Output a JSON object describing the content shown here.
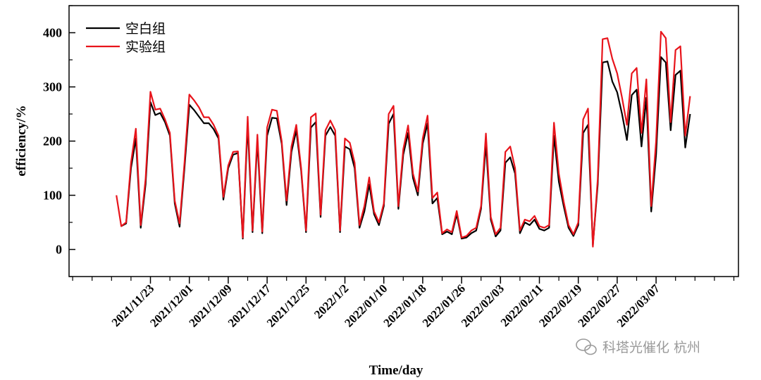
{
  "chart_data": {
    "type": "line",
    "xlabel": "Time/day",
    "ylabel": "efficiency/%",
    "ylim": [
      -50,
      450
    ],
    "yticks": [
      0,
      100,
      200,
      300,
      400
    ],
    "x_tick_labels": [
      "2021/11/23",
      "2021/12/01",
      "2021/12/09",
      "2021/12/17",
      "2021/12/25",
      "2022/1/2",
      "2022/01/10",
      "2022/01/18",
      "2022/01/26",
      "2022/02/03",
      "2022/02/11",
      "2022/02/19",
      "2022/02/27",
      "2022/03/07"
    ],
    "legend_position": "top-left",
    "grid": false,
    "series": [
      {
        "name": "空白组",
        "color": "#000000",
        "values": [
          [
            -7,
            null
          ],
          [
            -6,
            43
          ],
          [
            -5,
            48
          ],
          [
            -4,
            150
          ],
          [
            -3,
            205
          ],
          [
            -2,
            40
          ],
          [
            -1,
            120
          ],
          [
            0,
            272
          ],
          [
            1,
            248
          ],
          [
            2,
            252
          ],
          [
            3,
            235
          ],
          [
            4,
            210
          ],
          [
            5,
            85
          ],
          [
            6,
            42
          ],
          [
            7,
            150
          ],
          [
            8,
            267
          ],
          [
            9,
            257
          ],
          [
            10,
            245
          ],
          [
            11,
            233
          ],
          [
            12,
            233
          ],
          [
            13,
            222
          ],
          [
            14,
            205
          ],
          [
            15,
            92
          ],
          [
            16,
            150
          ],
          [
            17,
            175
          ],
          [
            18,
            178
          ],
          [
            19,
            20
          ],
          [
            20,
            230
          ],
          [
            21,
            32
          ],
          [
            22,
            200
          ],
          [
            23,
            30
          ],
          [
            24,
            210
          ],
          [
            25,
            243
          ],
          [
            26,
            242
          ],
          [
            27,
            195
          ],
          [
            28,
            82
          ],
          [
            29,
            180
          ],
          [
            30,
            220
          ],
          [
            31,
            145
          ],
          [
            32,
            32
          ],
          [
            33,
            225
          ],
          [
            34,
            235
          ],
          [
            35,
            60
          ],
          [
            36,
            210
          ],
          [
            37,
            226
          ],
          [
            38,
            210
          ],
          [
            39,
            32
          ],
          [
            40,
            190
          ],
          [
            41,
            185
          ],
          [
            42,
            150
          ],
          [
            43,
            40
          ],
          [
            44,
            70
          ],
          [
            45,
            120
          ],
          [
            46,
            65
          ],
          [
            47,
            45
          ],
          [
            48,
            80
          ],
          [
            49,
            232
          ],
          [
            50,
            250
          ],
          [
            51,
            75
          ],
          [
            52,
            175
          ],
          [
            53,
            215
          ],
          [
            54,
            132
          ],
          [
            55,
            100
          ],
          [
            56,
            195
          ],
          [
            57,
            233
          ],
          [
            58,
            85
          ],
          [
            59,
            95
          ],
          [
            60,
            28
          ],
          [
            61,
            33
          ],
          [
            62,
            28
          ],
          [
            63,
            65
          ],
          [
            64,
            20
          ],
          [
            65,
            22
          ],
          [
            66,
            30
          ],
          [
            67,
            35
          ],
          [
            68,
            75
          ],
          [
            69,
            195
          ],
          [
            70,
            55
          ],
          [
            71,
            24
          ],
          [
            72,
            35
          ],
          [
            73,
            160
          ],
          [
            74,
            170
          ],
          [
            75,
            140
          ],
          [
            76,
            30
          ],
          [
            77,
            50
          ],
          [
            78,
            45
          ],
          [
            79,
            55
          ],
          [
            80,
            38
          ],
          [
            81,
            35
          ],
          [
            82,
            40
          ],
          [
            83,
            210
          ],
          [
            84,
            125
          ],
          [
            85,
            80
          ],
          [
            86,
            40
          ],
          [
            87,
            25
          ],
          [
            88,
            45
          ],
          [
            89,
            215
          ],
          [
            90,
            230
          ],
          [
            91,
            8
          ],
          [
            92,
            120
          ],
          [
            93,
            345
          ],
          [
            94,
            347
          ],
          [
            95,
            310
          ],
          [
            96,
            290
          ],
          [
            97,
            250
          ],
          [
            98,
            202
          ],
          [
            99,
            285
          ],
          [
            100,
            295
          ],
          [
            101,
            190
          ],
          [
            102,
            280
          ],
          [
            103,
            70
          ],
          [
            104,
            175
          ],
          [
            105,
            355
          ],
          [
            106,
            345
          ],
          [
            107,
            220
          ],
          [
            108,
            322
          ],
          [
            109,
            330
          ],
          [
            110,
            188
          ],
          [
            111,
            250
          ]
        ]
      },
      {
        "name": "实验组",
        "color": "#e8141b",
        "values": [
          [
            -7,
            100
          ],
          [
            -6,
            43
          ],
          [
            -5,
            50
          ],
          [
            -4,
            160
          ],
          [
            -3,
            223
          ],
          [
            -2,
            45
          ],
          [
            -1,
            130
          ],
          [
            0,
            291
          ],
          [
            1,
            258
          ],
          [
            2,
            260
          ],
          [
            3,
            240
          ],
          [
            4,
            215
          ],
          [
            5,
            90
          ],
          [
            6,
            48
          ],
          [
            7,
            160
          ],
          [
            8,
            286
          ],
          [
            9,
            275
          ],
          [
            10,
            262
          ],
          [
            11,
            244
          ],
          [
            12,
            244
          ],
          [
            13,
            230
          ],
          [
            14,
            210
          ],
          [
            15,
            97
          ],
          [
            16,
            155
          ],
          [
            17,
            180
          ],
          [
            18,
            181
          ],
          [
            19,
            22
          ],
          [
            20,
            245
          ],
          [
            21,
            35
          ],
          [
            22,
            212
          ],
          [
            23,
            33
          ],
          [
            24,
            225
          ],
          [
            25,
            258
          ],
          [
            26,
            256
          ],
          [
            27,
            200
          ],
          [
            28,
            90
          ],
          [
            29,
            190
          ],
          [
            30,
            230
          ],
          [
            31,
            150
          ],
          [
            32,
            35
          ],
          [
            33,
            244
          ],
          [
            34,
            251
          ],
          [
            35,
            64
          ],
          [
            36,
            220
          ],
          [
            37,
            238
          ],
          [
            38,
            220
          ],
          [
            39,
            35
          ],
          [
            40,
            205
          ],
          [
            41,
            197
          ],
          [
            42,
            160
          ],
          [
            43,
            45
          ],
          [
            44,
            80
          ],
          [
            45,
            133
          ],
          [
            46,
            70
          ],
          [
            47,
            50
          ],
          [
            48,
            85
          ],
          [
            49,
            250
          ],
          [
            50,
            265
          ],
          [
            51,
            80
          ],
          [
            52,
            185
          ],
          [
            53,
            229
          ],
          [
            54,
            140
          ],
          [
            55,
            107
          ],
          [
            56,
            205
          ],
          [
            57,
            247
          ],
          [
            58,
            95
          ],
          [
            59,
            105
          ],
          [
            60,
            30
          ],
          [
            61,
            37
          ],
          [
            62,
            32
          ],
          [
            63,
            71
          ],
          [
            64,
            22
          ],
          [
            65,
            25
          ],
          [
            66,
            35
          ],
          [
            67,
            40
          ],
          [
            68,
            80
          ],
          [
            69,
            214
          ],
          [
            70,
            60
          ],
          [
            71,
            28
          ],
          [
            72,
            40
          ],
          [
            73,
            180
          ],
          [
            74,
            190
          ],
          [
            75,
            150
          ],
          [
            76,
            35
          ],
          [
            77,
            55
          ],
          [
            78,
            52
          ],
          [
            79,
            62
          ],
          [
            80,
            43
          ],
          [
            81,
            40
          ],
          [
            82,
            45
          ],
          [
            83,
            234
          ],
          [
            84,
            140
          ],
          [
            85,
            88
          ],
          [
            86,
            45
          ],
          [
            87,
            28
          ],
          [
            88,
            50
          ],
          [
            89,
            240
          ],
          [
            90,
            260
          ],
          [
            91,
            5
          ],
          [
            92,
            130
          ],
          [
            93,
            388
          ],
          [
            94,
            390
          ],
          [
            95,
            352
          ],
          [
            96,
            325
          ],
          [
            97,
            280
          ],
          [
            98,
            230
          ],
          [
            99,
            325
          ],
          [
            100,
            335
          ],
          [
            101,
            215
          ],
          [
            102,
            314
          ],
          [
            103,
            80
          ],
          [
            104,
            200
          ],
          [
            105,
            402
          ],
          [
            106,
            390
          ],
          [
            107,
            235
          ],
          [
            108,
            368
          ],
          [
            109,
            375
          ],
          [
            110,
            210
          ],
          [
            111,
            283
          ]
        ]
      }
    ]
  },
  "watermark": {
    "icon": "wechat-icon",
    "text": "科塔光催化 杭州"
  }
}
